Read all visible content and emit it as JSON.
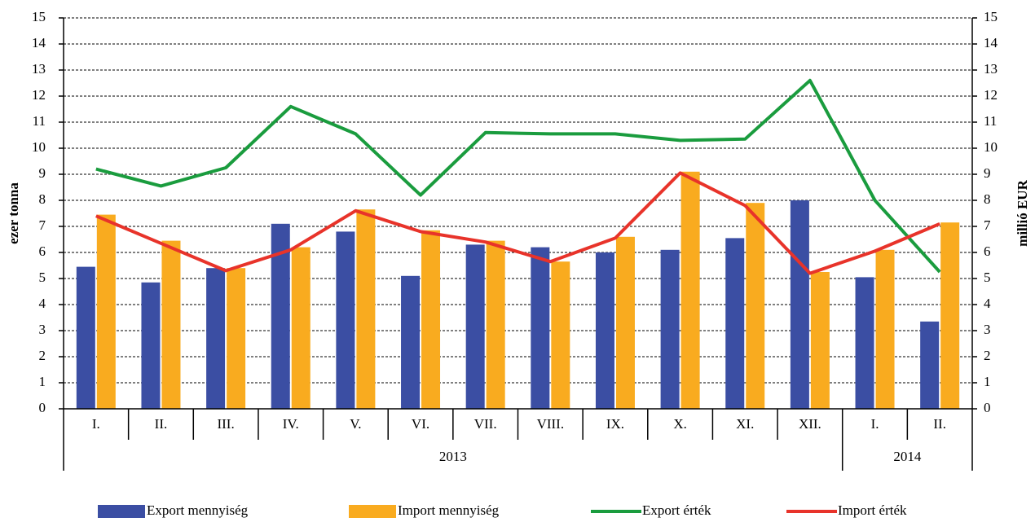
{
  "chart_data": {
    "type": "bar_line",
    "groups": [
      {
        "label": "2013",
        "categories": [
          "I.",
          "II.",
          "III.",
          "IV.",
          "V.",
          "VI.",
          "VII.",
          "VIII.",
          "IX.",
          "X.",
          "XI.",
          "XII."
        ]
      },
      {
        "label": "2014",
        "categories": [
          "I.",
          "II."
        ]
      }
    ],
    "y_label": "ezer tonna",
    "y2_label": "millió EUR",
    "ylim": [
      0,
      15
    ],
    "yticks": [
      0,
      1,
      2,
      3,
      4,
      5,
      6,
      7,
      8,
      9,
      10,
      11,
      12,
      13,
      14,
      15
    ],
    "y2lim": [
      0,
      15
    ],
    "y2ticks": [
      0,
      1,
      2,
      3,
      4,
      5,
      6,
      7,
      8,
      9,
      10,
      11,
      12,
      13,
      14,
      15
    ],
    "grid": true,
    "series": [
      {
        "name": "Export mennyiség",
        "type": "bar",
        "color": "#3b4ea3",
        "values": [
          5.45,
          4.85,
          5.4,
          7.1,
          6.8,
          5.1,
          6.3,
          6.2,
          6.0,
          6.1,
          6.55,
          8.0,
          5.05,
          3.35
        ]
      },
      {
        "name": "Import mennyiség",
        "type": "bar",
        "color": "#f9ab1f",
        "values": [
          7.45,
          6.45,
          5.4,
          6.2,
          7.65,
          6.85,
          6.45,
          5.65,
          6.6,
          9.1,
          7.9,
          5.25,
          6.1,
          7.15
        ]
      },
      {
        "name": "Export érték",
        "type": "line",
        "axis": "y2",
        "color": "#1a9c3e",
        "values": [
          9.2,
          8.55,
          9.25,
          11.6,
          10.55,
          8.2,
          10.6,
          10.55,
          10.55,
          10.3,
          10.35,
          12.6,
          8.0,
          5.25
        ]
      },
      {
        "name": "Import érték",
        "type": "line",
        "axis": "y2",
        "color": "#e8332a",
        "values": [
          7.4,
          6.35,
          5.3,
          6.1,
          7.6,
          6.8,
          6.4,
          5.65,
          6.55,
          9.05,
          7.8,
          5.2,
          6.05,
          7.1
        ]
      }
    ]
  }
}
